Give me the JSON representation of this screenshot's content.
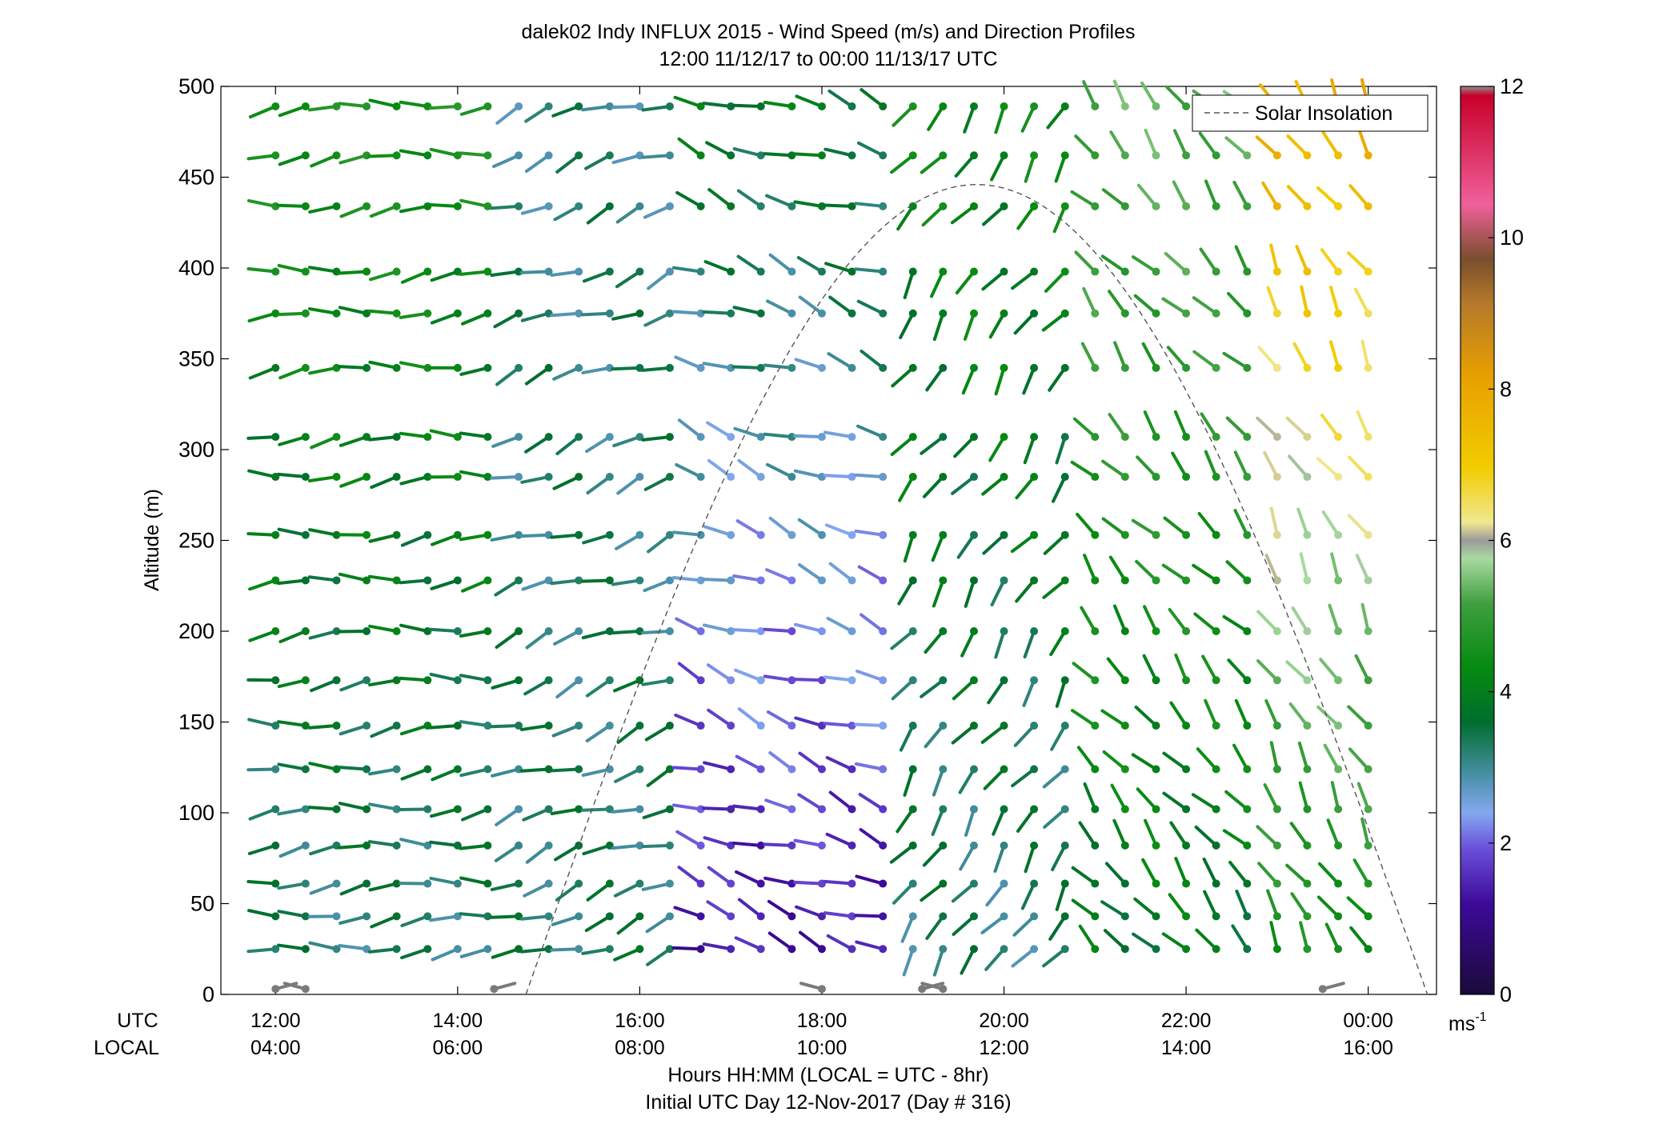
{
  "chart_data": {
    "type": "wind-barb-profile",
    "title": "dalek02 Indy INFLUX 2015 - Wind Speed (m/s) and Direction Profiles",
    "subtitle": "12:00 11/12/17 to 00:00 11/13/17  UTC",
    "ylabel": "Altitude (m)",
    "xlabel": "Hours HH:MM  (LOCAL = UTC - 8hr)",
    "footer": "Initial UTC Day 12-Nov-2017 (Day # 316)",
    "x_row_labels": [
      "UTC",
      "LOCAL"
    ],
    "x_range_hours": [
      11.4,
      24.75
    ],
    "ylim": [
      0,
      500
    ],
    "y_ticks": [
      0,
      50,
      100,
      150,
      200,
      250,
      300,
      350,
      400,
      450,
      500
    ],
    "x_ticks": [
      {
        "utc_hour": 12,
        "utc": "12:00",
        "local": "04:00"
      },
      {
        "utc_hour": 14,
        "utc": "14:00",
        "local": "06:00"
      },
      {
        "utc_hour": 16,
        "utc": "16:00",
        "local": "08:00"
      },
      {
        "utc_hour": 18,
        "utc": "18:00",
        "local": "10:00"
      },
      {
        "utc_hour": 20,
        "utc": "20:00",
        "local": "12:00"
      },
      {
        "utc_hour": 22,
        "utc": "22:00",
        "local": "14:00"
      },
      {
        "utc_hour": 24,
        "utc": "00:00",
        "local": "16:00"
      }
    ],
    "legend": {
      "label": "Solar Insolation",
      "placement": "top-right"
    },
    "colorbar": {
      "min": 0,
      "max": 12,
      "ticks": [
        0,
        2,
        4,
        6,
        8,
        10,
        12
      ],
      "unit": "ms"
    },
    "solar_insolation": {
      "start_hour": 14.75,
      "end_hour": 24.65,
      "peak_hour": 19.75,
      "peak_altitude": 446
    },
    "altitude_levels": [
      25,
      43,
      61,
      82,
      102,
      124,
      148,
      173,
      200,
      228,
      253,
      285,
      307,
      345,
      375,
      398,
      434,
      462,
      489
    ],
    "x_hours": [
      12.0,
      12.33,
      12.67,
      13.0,
      13.33,
      13.67,
      14.0,
      14.33,
      14.67,
      15.0,
      15.33,
      15.67,
      16.0,
      16.33,
      16.67,
      17.0,
      17.33,
      17.67,
      18.0,
      18.33,
      18.67,
      19.0,
      19.33,
      19.67,
      20.0,
      20.33,
      20.67,
      21.0,
      21.33,
      21.67,
      22.0,
      22.33,
      22.67,
      23.0,
      23.33,
      23.67,
      24.0
    ],
    "segments": [
      {
        "from_hour": 12.0,
        "to_hour": 14.4,
        "direction_deg": 265,
        "speed_top": 4.3,
        "speed_bottom": 3.0
      },
      {
        "from_hour": 14.4,
        "to_hour": 16.5,
        "direction_deg": 250,
        "speed_top": 3.0,
        "speed_bottom": 3.2
      },
      {
        "from_hour": 16.5,
        "to_hour": 18.9,
        "direction_deg": 290,
        "speed_top": 3.6,
        "speed_bottom": 1.2
      },
      {
        "from_hour": 18.9,
        "to_hour": 21.0,
        "direction_deg": 215,
        "speed_top": 4.0,
        "speed_bottom": 3.0
      },
      {
        "from_hour": 21.0,
        "to_hour": 22.8,
        "direction_deg": 320,
        "speed_top": 5.2,
        "speed_bottom": 3.5
      },
      {
        "from_hour": 22.8,
        "to_hour": 24.0,
        "direction_deg": 330,
        "speed_top": 7.8,
        "speed_bottom": 4.0
      }
    ],
    "surface_hours": [
      12.0,
      12.33,
      14.4,
      18.0,
      19.1,
      19.33,
      23.5
    ]
  }
}
